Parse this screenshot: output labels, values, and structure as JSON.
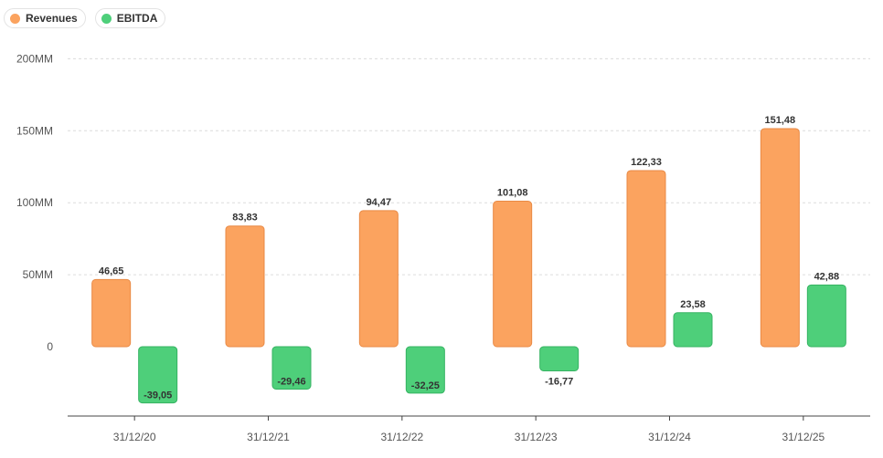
{
  "legend": [
    {
      "label": "Revenues",
      "color": "#fba35f"
    },
    {
      "label": "EBITDA",
      "color": "#4ecf7a"
    }
  ],
  "chart_data": {
    "type": "bar",
    "categories": [
      "31/12/20",
      "31/12/21",
      "31/12/22",
      "31/12/23",
      "31/12/24",
      "31/12/25"
    ],
    "series": [
      {
        "name": "Revenues",
        "color": "#fba35f",
        "values": [
          46.65,
          83.83,
          94.47,
          101.08,
          122.33,
          151.48
        ],
        "labels": [
          "46,65",
          "83,83",
          "94,47",
          "101,08",
          "122,33",
          "151,48"
        ]
      },
      {
        "name": "EBITDA",
        "color": "#4ecf7a",
        "values": [
          -39.05,
          -29.46,
          -32.25,
          -16.77,
          23.58,
          42.88
        ],
        "labels": [
          "-39,05",
          "-29,46",
          "-32,25",
          "-16,77",
          "23,58",
          "42,88"
        ]
      }
    ],
    "y_ticks": [
      0,
      50,
      100,
      150,
      200
    ],
    "y_tick_labels": [
      "0",
      "50MM",
      "100MM",
      "150MM",
      "200MM"
    ],
    "ylim": [
      -50,
      200
    ],
    "grid": true,
    "legend_position": "top-left"
  }
}
